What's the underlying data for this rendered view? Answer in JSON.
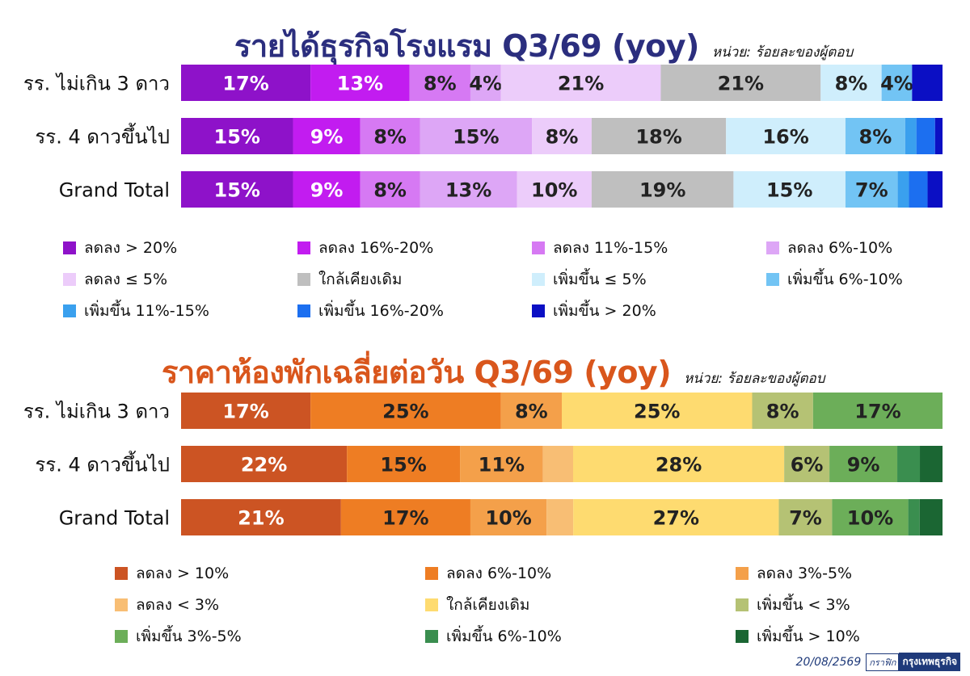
{
  "unit": "หน่วย: ร้อยละของผู้ตอบ",
  "date": "20/08/2569",
  "brand_tag": "กราฟิก",
  "brand": "กรุงเทพธุรกิจ",
  "chart_data": [
    {
      "type": "bar",
      "orientation": "horizontal",
      "stacked": true,
      "title": "รายได้ธุรกิจโรงแรม Q3/69 (yoy)",
      "title_color": "#2b2e7e",
      "categories": [
        "รร. ไม่เกิน 3 ดาว",
        "รร. 4 ดาวขึ้นไป",
        "Grand Total"
      ],
      "xlim": [
        0,
        100
      ],
      "grid": false,
      "legend_position": "bottom",
      "series": [
        {
          "name": "ลดลง > 20%",
          "color": "#8e12c9",
          "values": [
            17,
            15,
            15
          ],
          "labels": [
            "17%",
            "15%",
            "15%"
          ],
          "label_color": "#ffffff"
        },
        {
          "name": "ลดลง 16%-20%",
          "color": "#c21cf0",
          "values": [
            13,
            9,
            9
          ],
          "labels": [
            "13%",
            "9%",
            "9%"
          ],
          "label_color": "#ffffff"
        },
        {
          "name": "ลดลง 11%-15%",
          "color": "#d679f3",
          "values": [
            8,
            8,
            8
          ],
          "labels": [
            "8%",
            "8%",
            "8%"
          ],
          "label_color": "#222222"
        },
        {
          "name": "ลดลง 6%-10%",
          "color": "#dda6f6",
          "values": [
            4,
            15,
            13
          ],
          "labels": [
            "4%",
            "15%",
            "13%"
          ],
          "label_color": "#222222"
        },
        {
          "name": "ลดลง ≤ 5%",
          "color": "#ecccfa",
          "values": [
            21,
            8,
            10
          ],
          "labels": [
            "21%",
            "8%",
            "10%"
          ],
          "label_color": "#222222"
        },
        {
          "name": "ใกล้เคียงเดิม",
          "color": "#bfbfbf",
          "values": [
            21,
            18,
            19
          ],
          "labels": [
            "21%",
            "18%",
            "19%"
          ],
          "label_color": "#222222"
        },
        {
          "name": "เพิ่มขึ้น ≤ 5%",
          "color": "#cfeefc",
          "values": [
            8,
            16,
            15
          ],
          "labels": [
            "8%",
            "16%",
            "15%"
          ],
          "label_color": "#222222"
        },
        {
          "name": "เพิ่มขึ้น 6%-10%",
          "color": "#72c4f4",
          "values": [
            4,
            8,
            7
          ],
          "labels": [
            "4%",
            "8%",
            "7%"
          ],
          "label_color": "#222222"
        },
        {
          "name": "เพิ่มขึ้น 11%-15%",
          "color": "#3aa0ee",
          "values": [
            0,
            1.5,
            1.5
          ],
          "labels": [
            "",
            "",
            ""
          ],
          "label_color": "#222222"
        },
        {
          "name": "เพิ่มขึ้น 16%-20%",
          "color": "#1c6ff0",
          "values": [
            0,
            2.5,
            2.5
          ],
          "labels": [
            "",
            "",
            ""
          ],
          "label_color": "#222222"
        },
        {
          "name": "เพิ่มขึ้น > 20%",
          "color": "#0b0fc4",
          "values": [
            4,
            1,
            2
          ],
          "labels": [
            "",
            "",
            ""
          ],
          "label_color": "#ffffff"
        }
      ]
    },
    {
      "type": "bar",
      "orientation": "horizontal",
      "stacked": true,
      "title": "ราคาห้องพักเฉลี่ยต่อวัน Q3/69 (yoy)",
      "title_color": "#d9561c",
      "categories": [
        "รร. ไม่เกิน 3 ดาว",
        "รร. 4 ดาวขึ้นไป",
        "Grand Total"
      ],
      "xlim": [
        0,
        100
      ],
      "grid": false,
      "legend_position": "bottom",
      "series": [
        {
          "name": "ลดลง > 10%",
          "color": "#cc5423",
          "values": [
            17,
            22,
            21
          ],
          "labels": [
            "17%",
            "22%",
            "21%"
          ],
          "label_color": "#ffffff"
        },
        {
          "name": "ลดลง 6%-10%",
          "color": "#ee7d23",
          "values": [
            25,
            15,
            17
          ],
          "labels": [
            "25%",
            "15%",
            "17%"
          ],
          "label_color": "#222222"
        },
        {
          "name": "ลดลง 3%-5%",
          "color": "#f4a04a",
          "values": [
            8,
            11,
            10
          ],
          "labels": [
            "8%",
            "11%",
            "10%"
          ],
          "label_color": "#222222"
        },
        {
          "name": "ลดลง < 3%",
          "color": "#f8be74",
          "values": [
            0,
            4,
            3.5
          ],
          "labels": [
            "",
            "",
            ""
          ],
          "label_color": "#222222"
        },
        {
          "name": "ใกล้เคียงเดิม",
          "color": "#fedb70",
          "values": [
            25,
            28,
            27
          ],
          "labels": [
            "25%",
            "28%",
            "27%"
          ],
          "label_color": "#222222"
        },
        {
          "name": "เพิ่มขึ้น < 3%",
          "color": "#b5c274",
          "values": [
            8,
            6,
            7
          ],
          "labels": [
            "8%",
            "6%",
            "7%"
          ],
          "label_color": "#222222"
        },
        {
          "name": "เพิ่มขึ้น 3%-5%",
          "color": "#6cae59",
          "values": [
            17,
            9,
            10
          ],
          "labels": [
            "17%",
            "9%",
            "10%"
          ],
          "label_color": "#222222"
        },
        {
          "name": "เพิ่มขึ้น 6%-10%",
          "color": "#3a8e4f",
          "values": [
            0,
            3,
            1.5
          ],
          "labels": [
            "",
            "",
            ""
          ],
          "label_color": "#222222"
        },
        {
          "name": "เพิ่มขึ้น > 10%",
          "color": "#1b6633",
          "values": [
            0,
            3,
            3
          ],
          "labels": [
            "",
            "",
            ""
          ],
          "label_color": "#ffffff"
        }
      ]
    }
  ]
}
